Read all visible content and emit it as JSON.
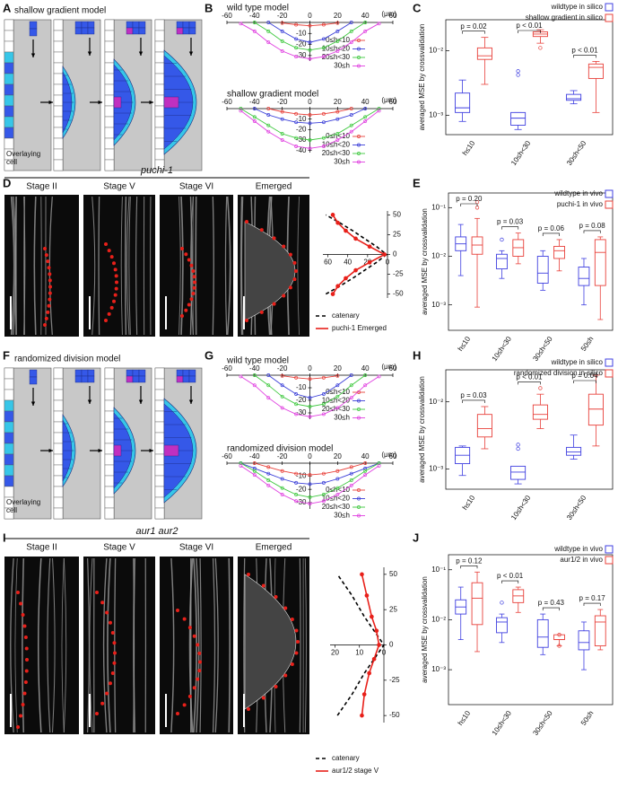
{
  "figure": {
    "letters": [
      "A",
      "B",
      "C",
      "D",
      "E",
      "F",
      "G",
      "H",
      "I",
      "J"
    ],
    "diagrams": [
      {
        "title": "shallow gradient model",
        "note": [
          "Overlaying",
          "cell"
        ]
      },
      {
        "title": "randomized division model",
        "note": [
          "Overlaying",
          "cell"
        ]
      }
    ],
    "micrographs": [
      {
        "title": "puchi-1",
        "stages": [
          "Stage II",
          "Stage V",
          "Stage VI",
          "Emerged"
        ]
      },
      {
        "title": "aur1 aur2",
        "stages": [
          "Stage II",
          "Stage V",
          "Stage VI",
          "Emerged"
        ]
      }
    ]
  },
  "chart_data": [
    {
      "type": "line",
      "title": "wild type model",
      "unit": "(μm)",
      "marker": true,
      "x": [
        -50,
        -40,
        -30,
        -20,
        -10,
        0,
        10,
        20,
        30,
        40,
        50
      ],
      "xlim": [
        -60,
        60
      ],
      "xticks": [
        -60,
        -40,
        -20,
        0,
        20,
        40,
        60
      ],
      "ylim": [
        -35,
        0
      ],
      "yticks": [
        -10,
        -20,
        -30
      ],
      "legend": "lower right",
      "series": [
        {
          "name": "0≤h<10",
          "color": "#e8403a",
          "values": [
            null,
            null,
            null,
            -0.5,
            -2,
            -3,
            -2,
            -0.5,
            null,
            null,
            null
          ]
        },
        {
          "name": "10≤h<20",
          "color": "#3b3fd8",
          "values": [
            null,
            null,
            0,
            -8,
            -15,
            -18,
            -15,
            -8,
            0,
            null,
            null
          ]
        },
        {
          "name": "20≤h<30",
          "color": "#3fc83f",
          "values": [
            null,
            0,
            -8,
            -17,
            -23,
            -25,
            -23,
            -17,
            -8,
            0,
            null
          ]
        },
        {
          "name": "30≤h",
          "color": "#e040e0",
          "values": [
            -1,
            -8,
            -18,
            -26,
            -31,
            -33,
            -31,
            -26,
            -18,
            -8,
            -1
          ]
        }
      ]
    },
    {
      "type": "line",
      "title": "shallow gradient model",
      "unit": "(μm)",
      "marker": true,
      "x": [
        -50,
        -40,
        -30,
        -20,
        -10,
        0,
        10,
        20,
        30,
        40,
        50
      ],
      "xlim": [
        -60,
        60
      ],
      "xticks": [
        -60,
        -40,
        -20,
        0,
        20,
        40,
        60
      ],
      "ylim": [
        -42,
        0
      ],
      "yticks": [
        -10,
        -20,
        -30,
        -40
      ],
      "legend": "lower right",
      "series": [
        {
          "name": "0≤h<10",
          "color": "#e8403a",
          "values": [
            null,
            null,
            0,
            -3,
            -5,
            -6,
            -5,
            -3,
            0,
            null,
            null
          ]
        },
        {
          "name": "10≤h<20",
          "color": "#3b3fd8",
          "values": [
            null,
            0,
            -6,
            -10,
            -13,
            -14,
            -13,
            -10,
            -6,
            0,
            null
          ]
        },
        {
          "name": "20≤h<30",
          "color": "#3fc83f",
          "values": [
            0,
            -8,
            -16,
            -24,
            -28,
            -30,
            -28,
            -24,
            -16,
            -8,
            0
          ]
        },
        {
          "name": "30≤h",
          "color": "#e040e0",
          "values": [
            -2,
            -12,
            -22,
            -30,
            -36,
            -38,
            -36,
            -30,
            -22,
            -12,
            -2
          ]
        }
      ]
    },
    {
      "type": "box",
      "log": true,
      "ylabel": "averaged MSE by crossvalidation",
      "legend": "upper right",
      "categories": [
        "h≤10",
        "10≤h<30",
        "30≤h<50"
      ],
      "ylim": [
        0.0005,
        0.03
      ],
      "yticks": [
        {
          "value": 0.001,
          "label": "10⁻³"
        },
        {
          "value": 0.01,
          "label": "10⁻²"
        }
      ],
      "p_values": [
        "p = 0.02",
        "p < 0.01",
        "p < 0.01"
      ],
      "series": [
        {
          "name": "wildtype in silico",
          "color": "#3f3fe0",
          "low": [
            0.0008,
            0.0006,
            0.0015
          ],
          "q1": [
            0.0011,
            0.0007,
            0.0017
          ],
          "median": [
            0.0013,
            0.0009,
            0.0018
          ],
          "q3": [
            0.0022,
            0.0011,
            0.0021
          ],
          "high": [
            0.0035,
            0.0011,
            0.0024
          ],
          "outliers": [
            [],
            [
              0.0042,
              0.0048
            ],
            []
          ]
        },
        {
          "name": "shallow gradient in silico",
          "color": "#e8403a",
          "low": [
            0.003,
            0.013,
            0.0011
          ],
          "q1": [
            0.0073,
            0.0165,
            0.0037
          ],
          "median": [
            0.0083,
            0.018,
            0.0055
          ],
          "q3": [
            0.011,
            0.0195,
            0.0062
          ],
          "high": [
            0.016,
            0.021,
            0.0068
          ],
          "outliers": [
            [],
            [
              0.011
            ],
            []
          ]
        }
      ]
    },
    {
      "type": "line",
      "orientation": "horizontal",
      "marker": true,
      "x": [
        -50,
        -40,
        -30,
        -20,
        -10,
        0,
        10,
        20,
        30,
        40,
        50
      ],
      "xlim": [
        -55,
        55
      ],
      "xticks": [
        50,
        25,
        0,
        -25,
        -50
      ],
      "ylim": [
        0,
        65
      ],
      "yticks": [
        60,
        40,
        20,
        0
      ],
      "series": [
        {
          "name": "catenary",
          "color": "#000000",
          "dash": true,
          "values": [
            62,
            48,
            35,
            23,
            11,
            1,
            11,
            23,
            35,
            48,
            62
          ]
        },
        {
          "name": "puchi-1 Emerged",
          "color": "#e8201a",
          "values": [
            55,
            50,
            42,
            32,
            18,
            3,
            18,
            32,
            42,
            50,
            55
          ]
        }
      ]
    },
    {
      "type": "box",
      "log": true,
      "ylabel": "averaged MSE by crossvalidation",
      "legend": "upper right",
      "categories": [
        "h≤10",
        "10≤h<30",
        "30≤h<50",
        "50≤h"
      ],
      "ylim": [
        0.0003,
        0.2
      ],
      "yticks": [
        {
          "value": 0.001,
          "label": "10⁻³"
        },
        {
          "value": 0.01,
          "label": "10⁻²"
        },
        {
          "value": 0.1,
          "label": "10⁻¹"
        }
      ],
      "p_values": [
        "p = 0.20",
        "p = 0.03",
        "p = 0.06",
        "p = 0.08"
      ],
      "series": [
        {
          "name": "wildtype in vivo",
          "color": "#3f3fe0",
          "low": [
            0.004,
            0.0035,
            0.002,
            0.001
          ],
          "q1": [
            0.013,
            0.0055,
            0.0028,
            0.0025
          ],
          "median": [
            0.018,
            0.009,
            0.0045,
            0.0035
          ],
          "q3": [
            0.025,
            0.011,
            0.01,
            0.006
          ],
          "high": [
            0.045,
            0.013,
            0.013,
            0.009
          ],
          "outliers": [
            [],
            [
              0.022
            ],
            [],
            []
          ]
        },
        {
          "name": "puchi-1 in vivo",
          "color": "#e8403a",
          "low": [
            0.0009,
            0.007,
            0.005,
            0.0005
          ],
          "q1": [
            0.011,
            0.01,
            0.009,
            0.0025
          ],
          "median": [
            0.017,
            0.015,
            0.013,
            0.012
          ],
          "q3": [
            0.025,
            0.022,
            0.016,
            0.022
          ],
          "high": [
            0.06,
            0.03,
            0.022,
            0.025
          ],
          "outliers": [
            [
              0.1,
              0.13
            ],
            [],
            [],
            []
          ]
        }
      ]
    },
    {
      "type": "line",
      "title": "wild type model",
      "unit": "(μm)",
      "marker": true,
      "x": [
        -50,
        -40,
        -30,
        -20,
        -10,
        0,
        10,
        20,
        30,
        40,
        50
      ],
      "xlim": [
        -60,
        60
      ],
      "xticks": [
        -60,
        -40,
        -20,
        0,
        20,
        40,
        60
      ],
      "ylim": [
        -35,
        0
      ],
      "yticks": [
        -10,
        -20,
        -30
      ],
      "legend": "lower right",
      "series": [
        {
          "name": "0≤h<10",
          "color": "#e8403a",
          "values": [
            null,
            null,
            null,
            -0.5,
            -2,
            -3,
            -2,
            -0.5,
            null,
            null,
            null
          ]
        },
        {
          "name": "10≤h<20",
          "color": "#3b3fd8",
          "values": [
            null,
            null,
            0,
            -8,
            -15,
            -18,
            -15,
            -8,
            0,
            null,
            null
          ]
        },
        {
          "name": "20≤h<30",
          "color": "#3fc83f",
          "values": [
            null,
            0,
            -8,
            -17,
            -23,
            -25,
            -23,
            -17,
            -8,
            0,
            null
          ]
        },
        {
          "name": "30≤h",
          "color": "#e040e0",
          "values": [
            -1,
            -8,
            -18,
            -26,
            -31,
            -33,
            -31,
            -26,
            -18,
            -8,
            -1
          ]
        }
      ]
    },
    {
      "type": "line",
      "title": "randomized division model",
      "unit": "(μm)",
      "marker": true,
      "x": [
        -50,
        -40,
        -30,
        -20,
        -10,
        0,
        10,
        20,
        30,
        40,
        50
      ],
      "xlim": [
        -60,
        60
      ],
      "xticks": [
        -60,
        -40,
        -20,
        0,
        20,
        40,
        60
      ],
      "ylim": [
        -35,
        0
      ],
      "yticks": [
        -10,
        -20,
        -30
      ],
      "legend": "lower right",
      "series": [
        {
          "name": "0≤h<10",
          "color": "#e8403a",
          "values": [
            null,
            0,
            -3,
            -6,
            -8,
            -9,
            -8,
            -6,
            -3,
            0,
            null
          ]
        },
        {
          "name": "10≤h<20",
          "color": "#3b3fd8",
          "values": [
            0,
            -4,
            -8,
            -12,
            -15,
            -16,
            -15,
            -12,
            -8,
            -4,
            0
          ]
        },
        {
          "name": "20≤h<30",
          "color": "#3fc83f",
          "values": [
            0,
            -6,
            -13,
            -19,
            -24,
            -26,
            -24,
            -19,
            -13,
            -6,
            0
          ]
        },
        {
          "name": "30≤h",
          "color": "#e040e0",
          "values": [
            -2,
            -9,
            -17,
            -24,
            -29,
            -31,
            -29,
            -24,
            -17,
            -9,
            -2
          ]
        }
      ]
    },
    {
      "type": "box",
      "log": true,
      "ylabel": "averaged MSE by crossvalidation",
      "legend": "upper right",
      "categories": [
        "h≤10",
        "10≤h<30",
        "30≤h<50"
      ],
      "ylim": [
        0.0005,
        0.03
      ],
      "yticks": [
        {
          "value": 0.001,
          "label": "10⁻³"
        },
        {
          "value": 0.01,
          "label": "10⁻²"
        }
      ],
      "p_values": [
        "p = 0.03",
        "p < 0.01",
        "p = 0.04"
      ],
      "series": [
        {
          "name": "wildtype in silico",
          "color": "#3f3fe0",
          "low": [
            0.0008,
            0.0006,
            0.0014
          ],
          "q1": [
            0.0012,
            0.0007,
            0.0016
          ],
          "median": [
            0.0016,
            0.0009,
            0.0018
          ],
          "q3": [
            0.0021,
            0.0011,
            0.0021
          ],
          "high": [
            0.0022,
            0.0011,
            0.0032
          ],
          "outliers": [
            [],
            [
              0.002,
              0.0023
            ],
            []
          ]
        },
        {
          "name": "randomized division in silico",
          "color": "#e8403a",
          "low": [
            0.002,
            0.004,
            0.0022
          ],
          "q1": [
            0.003,
            0.0055,
            0.0045
          ],
          "median": [
            0.004,
            0.0065,
            0.0078
          ],
          "q3": [
            0.0065,
            0.009,
            0.013
          ],
          "high": [
            0.0085,
            0.013,
            0.025
          ],
          "outliers": [
            [],
            [
              0.016
            ],
            []
          ]
        }
      ]
    },
    {
      "type": "line",
      "orientation": "horizontal",
      "marker": true,
      "x": [
        -50,
        -35,
        -20,
        -10,
        0,
        10,
        20,
        35,
        50
      ],
      "xlim": [
        -55,
        55
      ],
      "xticks": [
        50,
        25,
        0,
        -25,
        -50
      ],
      "ylim": [
        0,
        22
      ],
      "yticks": [
        20,
        10,
        0
      ],
      "series": [
        {
          "name": "catenary",
          "color": "#000000",
          "dash": true,
          "values": [
            19,
            13,
            8,
            4,
            0,
            4,
            8,
            13,
            19
          ]
        },
        {
          "name": "aur1/2 stage V",
          "color": "#e8201a",
          "values": [
            9,
            8,
            6,
            4,
            2,
            3,
            5,
            7,
            9
          ]
        }
      ]
    },
    {
      "type": "box",
      "log": true,
      "ylabel": "averaged MSE by crossvalidation",
      "legend": "upper right",
      "categories": [
        "h≤10",
        "10≤h<30",
        "30≤h<50",
        "50≤h"
      ],
      "ylim": [
        0.0002,
        0.2
      ],
      "yticks": [
        {
          "value": 0.001,
          "label": "10⁻³"
        },
        {
          "value": 0.01,
          "label": "10⁻²"
        },
        {
          "value": 0.1,
          "label": "10⁻¹"
        }
      ],
      "p_values": [
        "p = 0.12",
        "p < 0.01",
        "p = 0.43",
        "p = 0.17"
      ],
      "series": [
        {
          "name": "wildtype in vivo",
          "color": "#3f3fe0",
          "low": [
            0.004,
            0.0035,
            0.002,
            0.001
          ],
          "q1": [
            0.013,
            0.0055,
            0.0028,
            0.0025
          ],
          "median": [
            0.018,
            0.009,
            0.0045,
            0.0035
          ],
          "q3": [
            0.025,
            0.011,
            0.01,
            0.006
          ],
          "high": [
            0.045,
            0.013,
            0.013,
            0.009
          ],
          "outliers": [
            [],
            [
              0.022
            ],
            [],
            []
          ]
        },
        {
          "name": "aur1/2 in vivo",
          "color": "#e8403a",
          "low": [
            0.0023,
            0.014,
            0.003,
            0.0025
          ],
          "q1": [
            0.008,
            0.022,
            0.004,
            0.003
          ],
          "median": [
            0.027,
            0.03,
            0.004,
            0.009
          ],
          "q3": [
            0.055,
            0.04,
            0.005,
            0.012
          ],
          "high": [
            0.09,
            0.045,
            0.005,
            0.016
          ],
          "outliers": [
            [],
            [],
            [
              0.003,
              0.005
            ],
            []
          ]
        }
      ]
    }
  ]
}
